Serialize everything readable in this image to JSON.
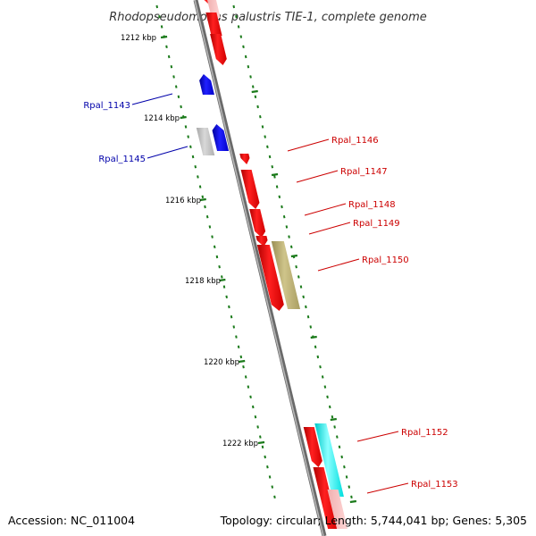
{
  "title": "Rhodopseudomonas palustris TIE-1, complete genome",
  "footer": {
    "accession": "Accession: NC_011004",
    "summary": "Topology: circular; Length: 5,744,041 bp; Genes: 5,305"
  },
  "colors": {
    "strand_forward": "#ff0000",
    "strand_reverse": "#0000ff",
    "gene_grey": "#c0c0c0",
    "gene_olive": "#b8ad70",
    "gene_cyan": "#00ffff",
    "backbone": "#8c8c8c",
    "tick_green": "#1a7a1a",
    "label_red": "#cc0000",
    "label_blue": "#0000aa"
  },
  "scale_labels": [
    {
      "name": "kbp-1212",
      "text": "1212 kbp"
    },
    {
      "name": "kbp-1214",
      "text": "1214 kbp"
    },
    {
      "name": "kbp-1216",
      "text": "1216 kbp"
    },
    {
      "name": "kbp-1218",
      "text": "1218 kbp"
    },
    {
      "name": "kbp-1220",
      "text": "1220 kbp"
    },
    {
      "name": "kbp-1222",
      "text": "1222 kbp"
    }
  ],
  "gene_labels": [
    {
      "name": "Rpal_1143",
      "text": "Rpal_1143",
      "strand": "reverse"
    },
    {
      "name": "Rpal_1145",
      "text": "Rpal_1145",
      "strand": "reverse"
    },
    {
      "name": "Rpal_1146",
      "text": "Rpal_1146",
      "strand": "forward"
    },
    {
      "name": "Rpal_1147",
      "text": "Rpal_1147",
      "strand": "forward"
    },
    {
      "name": "Rpal_1148",
      "text": "Rpal_1148",
      "strand": "forward"
    },
    {
      "name": "Rpal_1149",
      "text": "Rpal_1149",
      "strand": "forward"
    },
    {
      "name": "Rpal_1150",
      "text": "Rpal_1150",
      "strand": "forward"
    },
    {
      "name": "Rpal_1152",
      "text": "Rpal_1152",
      "strand": "forward"
    },
    {
      "name": "Rpal_1153",
      "text": "Rpal_1153",
      "strand": "forward"
    }
  ]
}
